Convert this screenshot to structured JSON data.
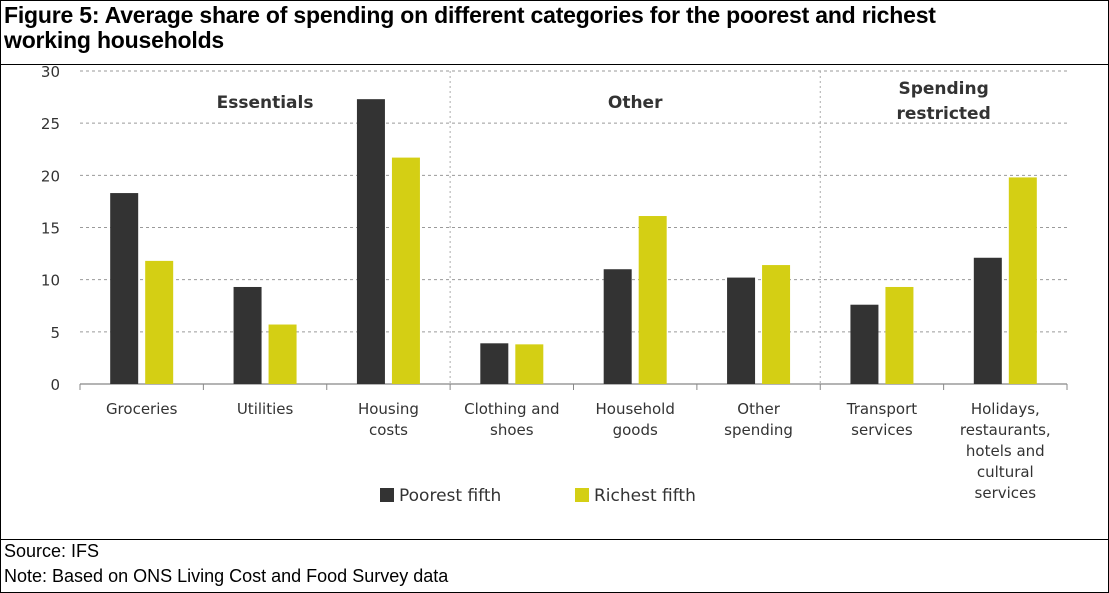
{
  "figure": {
    "title": "Figure 5: Average share of spending on different categories for the poorest and richest working households",
    "source": "Source: IFS",
    "note": "Note:  Based on ONS Living Cost and Food Survey data"
  },
  "colors": {
    "poorest": "#333333",
    "richest": "#d4cf14",
    "axis": "#888888",
    "gridline": "#9a9a9a",
    "divider": "#aaaaaa"
  },
  "chart_data": {
    "type": "bar",
    "title": "",
    "xlabel": "",
    "ylabel": "",
    "ylim": [
      0,
      30
    ],
    "yticks": [
      0,
      5,
      10,
      15,
      20,
      25,
      30
    ],
    "grid": "horizontal dashed",
    "legend_position": "bottom-center",
    "categories": [
      [
        "Groceries"
      ],
      [
        "Utilities"
      ],
      [
        "Housing",
        "costs"
      ],
      [
        "Clothing and",
        "shoes"
      ],
      [
        "Household",
        "goods"
      ],
      [
        "Other",
        "spending"
      ],
      [
        "Transport",
        "services"
      ],
      [
        "Holidays,",
        "restaurants,",
        "hotels and",
        "cultural",
        "services"
      ]
    ],
    "series": [
      {
        "name": "Poorest fifth",
        "values": [
          18.3,
          9.3,
          27.3,
          3.9,
          11.0,
          10.2,
          7.6,
          12.1
        ]
      },
      {
        "name": "Richest fifth",
        "values": [
          11.8,
          5.7,
          21.7,
          3.8,
          16.1,
          11.4,
          9.3,
          19.8
        ]
      }
    ],
    "groups": [
      {
        "label": [
          "Essentials"
        ],
        "start": 0,
        "end": 2
      },
      {
        "label": [
          "Other"
        ],
        "start": 3,
        "end": 5
      },
      {
        "label": [
          "Spending",
          "restricted"
        ],
        "start": 6,
        "end": 7
      }
    ]
  }
}
